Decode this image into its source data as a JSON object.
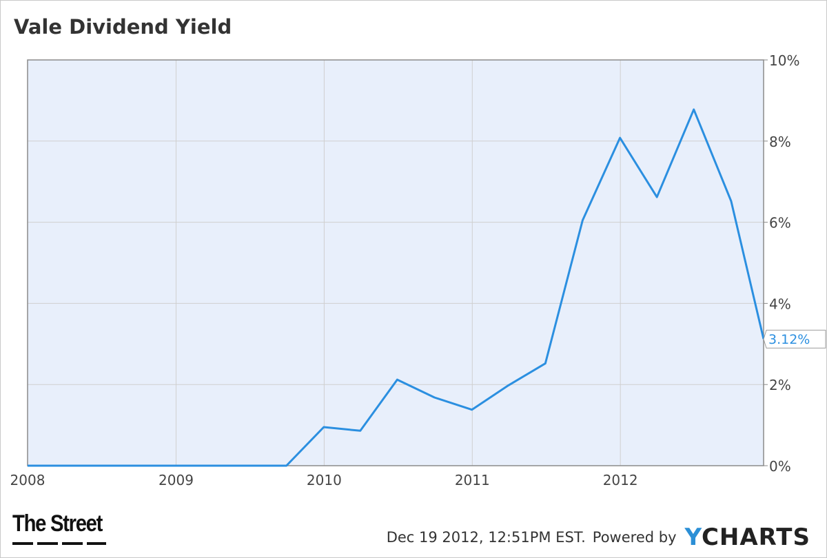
{
  "title": "Vale Dividend Yield",
  "footer": {
    "timestamp": "Dec 19 2012, 12:51PM EST.",
    "powered_by": "Powered by",
    "ycharts_y": "Y",
    "ycharts_rest": "CHARTS"
  },
  "branding": {
    "publisher": "The Street"
  },
  "colors": {
    "plot_background": "#e8effb",
    "line": "#2b8fe0",
    "grid": "#cfcfcf",
    "axis_text": "#444444",
    "callout_text": "#2b8fe0"
  },
  "chart_data": {
    "type": "line",
    "title": "Vale Dividend Yield",
    "xlabel": "",
    "ylabel": "",
    "x_ticks": [
      "2008",
      "2009",
      "2010",
      "2011",
      "2012"
    ],
    "y_ticks": [
      "0%",
      "2%",
      "4%",
      "6%",
      "8%",
      "10%"
    ],
    "xlim": [
      "2008-01-01",
      "2012-12-19"
    ],
    "ylim": [
      0,
      10
    ],
    "y_unit": "%",
    "grid": true,
    "last_value_label": "3.12%",
    "series": [
      {
        "points": [
          {
            "date": "2008-01-01",
            "value": 0.0
          },
          {
            "date": "2009-09-30",
            "value": 0.0
          },
          {
            "date": "2009-12-31",
            "value": 0.95
          },
          {
            "date": "2010-03-31",
            "value": 0.86
          },
          {
            "date": "2010-06-30",
            "value": 2.12
          },
          {
            "date": "2010-09-30",
            "value": 1.68
          },
          {
            "date": "2010-12-31",
            "value": 1.38
          },
          {
            "date": "2011-03-31",
            "value": 1.98
          },
          {
            "date": "2011-06-30",
            "value": 2.52
          },
          {
            "date": "2011-09-30",
            "value": 6.05
          },
          {
            "date": "2011-12-31",
            "value": 8.08
          },
          {
            "date": "2012-03-31",
            "value": 6.62
          },
          {
            "date": "2012-06-30",
            "value": 8.78
          },
          {
            "date": "2012-09-30",
            "value": 6.52
          },
          {
            "date": "2012-12-19",
            "value": 3.12
          }
        ]
      }
    ]
  }
}
